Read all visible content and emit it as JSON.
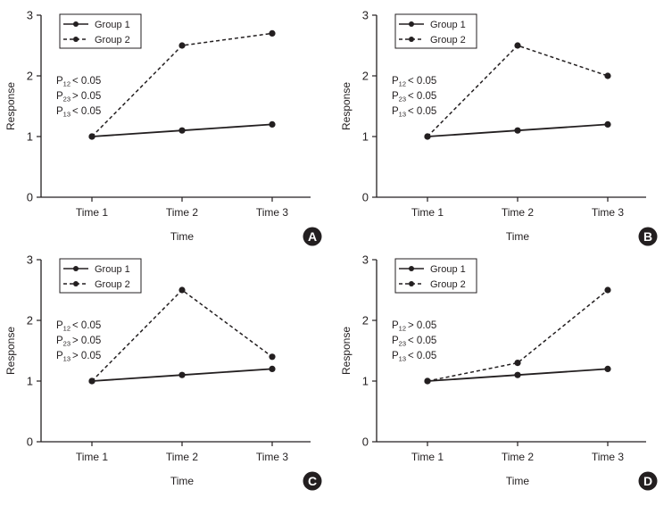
{
  "chart_data": [
    {
      "type": "line",
      "panel_label": "A",
      "xlabel": "Time",
      "ylabel": "Response",
      "categories": [
        "Time 1",
        "Time 2",
        "Time 3"
      ],
      "ylim": [
        0,
        3
      ],
      "yticks": [
        "0",
        "1",
        "2",
        "3"
      ],
      "legend_position": "top-left",
      "grid": false,
      "series": [
        {
          "name": "Group 1",
          "style": "solid",
          "values": [
            1.0,
            1.1,
            1.2
          ]
        },
        {
          "name": "Group 2",
          "style": "dashed",
          "values": [
            1.0,
            2.5,
            2.7
          ]
        }
      ],
      "annotations": [
        {
          "p": "P",
          "sub": "12",
          "rel": "< 0.05"
        },
        {
          "p": "P",
          "sub": "23",
          "rel": "> 0.05"
        },
        {
          "p": "P",
          "sub": "13",
          "rel": "< 0.05"
        }
      ]
    },
    {
      "type": "line",
      "panel_label": "B",
      "xlabel": "Time",
      "ylabel": "Response",
      "categories": [
        "Time 1",
        "Time 2",
        "Time 3"
      ],
      "ylim": [
        0,
        3
      ],
      "yticks": [
        "0",
        "1",
        "2",
        "3"
      ],
      "legend_position": "top-left",
      "grid": false,
      "series": [
        {
          "name": "Group 1",
          "style": "solid",
          "values": [
            1.0,
            1.1,
            1.2
          ]
        },
        {
          "name": "Group 2",
          "style": "dashed",
          "values": [
            1.0,
            2.5,
            2.0
          ]
        }
      ],
      "annotations": [
        {
          "p": "P",
          "sub": "12",
          "rel": "< 0.05"
        },
        {
          "p": "P",
          "sub": "23",
          "rel": "< 0.05"
        },
        {
          "p": "P",
          "sub": "13",
          "rel": "< 0.05"
        }
      ]
    },
    {
      "type": "line",
      "panel_label": "C",
      "xlabel": "Time",
      "ylabel": "Response",
      "categories": [
        "Time 1",
        "Time 2",
        "Time 3"
      ],
      "ylim": [
        0,
        3
      ],
      "yticks": [
        "0",
        "1",
        "2",
        "3"
      ],
      "legend_position": "top-left",
      "grid": false,
      "series": [
        {
          "name": "Group 1",
          "style": "solid",
          "values": [
            1.0,
            1.1,
            1.2
          ]
        },
        {
          "name": "Group 2",
          "style": "dashed",
          "values": [
            1.0,
            2.5,
            1.4
          ]
        }
      ],
      "annotations": [
        {
          "p": "P",
          "sub": "12",
          "rel": "< 0.05"
        },
        {
          "p": "P",
          "sub": "23",
          "rel": "> 0.05"
        },
        {
          "p": "P",
          "sub": "13",
          "rel": "> 0.05"
        }
      ]
    },
    {
      "type": "line",
      "panel_label": "D",
      "xlabel": "Time",
      "ylabel": "Response",
      "categories": [
        "Time 1",
        "Time 2",
        "Time 3"
      ],
      "ylim": [
        0,
        3
      ],
      "yticks": [
        "0",
        "1",
        "2",
        "3"
      ],
      "legend_position": "top-left",
      "grid": false,
      "series": [
        {
          "name": "Group 1",
          "style": "solid",
          "values": [
            1.0,
            1.1,
            1.2
          ]
        },
        {
          "name": "Group 2",
          "style": "dashed",
          "values": [
            1.0,
            1.3,
            2.5
          ]
        }
      ],
      "annotations": [
        {
          "p": "P",
          "sub": "12",
          "rel": "> 0.05"
        },
        {
          "p": "P",
          "sub": "23",
          "rel": "< 0.05"
        },
        {
          "p": "P",
          "sub": "13",
          "rel": "< 0.05"
        }
      ]
    }
  ]
}
